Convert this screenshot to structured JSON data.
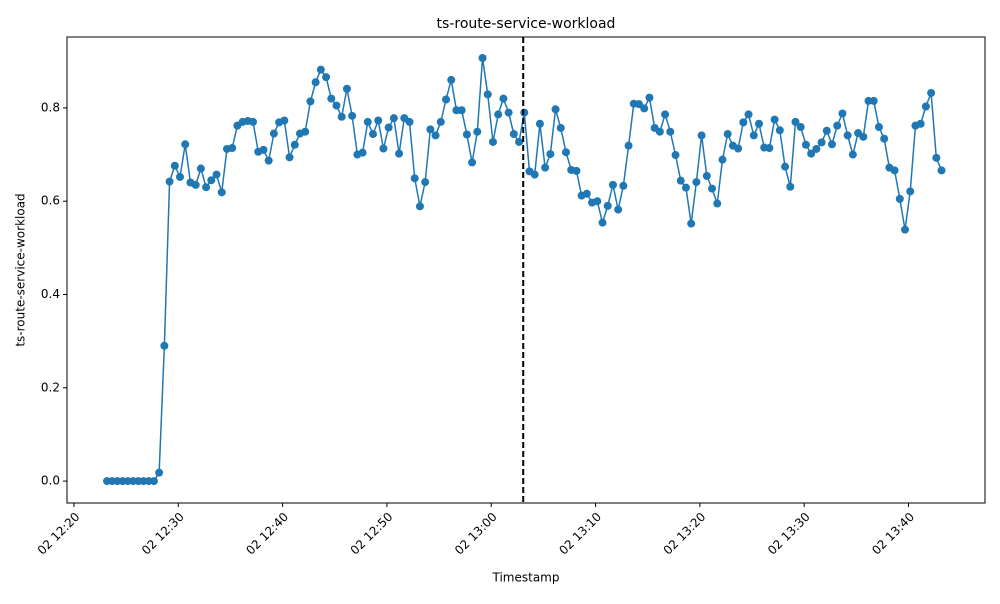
{
  "chart_data": {
    "type": "line",
    "title": "ts-route-service-workload",
    "x_label": "Timestamp",
    "y_label": "ts-route-service-workload",
    "color": "#1f77b4",
    "vline": "13:03:04",
    "vline_color": "#000000",
    "x": [
      "12:23:10",
      "12:23:40",
      "12:24:10",
      "12:24:40",
      "12:25:10",
      "12:25:40",
      "12:26:10",
      "12:26:40",
      "12:27:10",
      "12:27:40",
      "12:28:10",
      "12:28:40",
      "12:29:10",
      "12:29:40",
      "12:30:10",
      "12:30:40",
      "12:31:10",
      "12:31:40",
      "12:32:10",
      "12:32:40",
      "12:33:10",
      "12:33:40",
      "12:34:10",
      "12:34:40",
      "12:35:10",
      "12:35:40",
      "12:36:10",
      "12:36:40",
      "12:37:10",
      "12:37:40",
      "12:38:10",
      "12:38:40",
      "12:39:10",
      "12:39:40",
      "12:40:10",
      "12:40:40",
      "12:41:10",
      "12:41:40",
      "12:42:10",
      "12:42:40",
      "12:43:10",
      "12:43:40",
      "12:44:10",
      "12:44:40",
      "12:45:10",
      "12:45:40",
      "12:46:10",
      "12:46:40",
      "12:47:10",
      "12:47:40",
      "12:48:10",
      "12:48:40",
      "12:49:10",
      "12:49:40",
      "12:50:10",
      "12:50:40",
      "12:51:10",
      "12:51:40",
      "12:52:10",
      "12:52:40",
      "12:53:10",
      "12:53:40",
      "12:54:10",
      "12:54:40",
      "12:55:10",
      "12:55:40",
      "12:56:10",
      "12:56:40",
      "12:57:10",
      "12:57:40",
      "12:58:10",
      "12:58:40",
      "12:59:10",
      "12:59:40",
      "13:00:10",
      "13:00:40",
      "13:01:10",
      "13:01:40",
      "13:02:10",
      "13:02:40",
      "13:03:10",
      "13:03:40",
      "13:04:10",
      "13:04:40",
      "13:05:10",
      "13:05:40",
      "13:06:10",
      "13:06:40",
      "13:07:10",
      "13:07:40",
      "13:08:10",
      "13:08:40",
      "13:09:10",
      "13:09:40",
      "13:10:10",
      "13:10:40",
      "13:11:10",
      "13:11:40",
      "13:12:10",
      "13:12:40",
      "13:13:10",
      "13:13:40",
      "13:14:10",
      "13:14:40",
      "13:15:10",
      "13:15:40",
      "13:16:10",
      "13:16:40",
      "13:17:10",
      "13:17:40",
      "13:18:10",
      "13:18:40",
      "13:19:10",
      "13:19:40",
      "13:20:10",
      "13:20:40",
      "13:21:10",
      "13:21:40",
      "13:22:10",
      "13:22:40",
      "13:23:10",
      "13:23:40",
      "13:24:10",
      "13:24:40",
      "13:25:10",
      "13:25:40",
      "13:26:10",
      "13:26:40",
      "13:27:10",
      "13:27:40",
      "13:28:10",
      "13:28:40",
      "13:29:10",
      "13:29:40",
      "13:30:10",
      "13:30:40",
      "13:31:10",
      "13:31:40",
      "13:32:10",
      "13:32:40",
      "13:33:10",
      "13:33:40",
      "13:34:10",
      "13:34:40",
      "13:35:10",
      "13:35:40",
      "13:36:10",
      "13:36:40",
      "13:37:10",
      "13:37:40",
      "13:38:10",
      "13:38:40",
      "13:39:10",
      "13:39:40",
      "13:40:10",
      "13:40:40",
      "13:41:10",
      "13:41:40",
      "13:42:10",
      "13:42:40",
      "13:43:10"
    ],
    "values": [
      0,
      0,
      0,
      0,
      0,
      0,
      0,
      0,
      0,
      0,
      0.018,
      0.29,
      0.642,
      0.676,
      0.652,
      0.722,
      0.64,
      0.635,
      0.67,
      0.63,
      0.645,
      0.657,
      0.619,
      0.712,
      0.714,
      0.762,
      0.77,
      0.772,
      0.77,
      0.706,
      0.71,
      0.687,
      0.745,
      0.769,
      0.773,
      0.694,
      0.721,
      0.745,
      0.749,
      0.814,
      0.855,
      0.882,
      0.866,
      0.82,
      0.805,
      0.781,
      0.841,
      0.783,
      0.7,
      0.704,
      0.77,
      0.744,
      0.773,
      0.713,
      0.758,
      0.778,
      0.702,
      0.778,
      0.77,
      0.649,
      0.589,
      0.641,
      0.754,
      0.741,
      0.77,
      0.818,
      0.86,
      0.795,
      0.795,
      0.743,
      0.683,
      0.749,
      0.907,
      0.829,
      0.727,
      0.786,
      0.82,
      0.79,
      0.744,
      0.727,
      0.79,
      0.664,
      0.657,
      0.766,
      0.672,
      0.701,
      0.797,
      0.757,
      0.705,
      0.667,
      0.665,
      0.612,
      0.616,
      0.597,
      0.6,
      0.554,
      0.59,
      0.635,
      0.582,
      0.633,
      0.719,
      0.809,
      0.808,
      0.799,
      0.822,
      0.757,
      0.749,
      0.786,
      0.749,
      0.699,
      0.644,
      0.629,
      0.552,
      0.641,
      0.741,
      0.654,
      0.627,
      0.595,
      0.689,
      0.744,
      0.719,
      0.713,
      0.769,
      0.786,
      0.741,
      0.766,
      0.715,
      0.714,
      0.775,
      0.752,
      0.674,
      0.631,
      0.77,
      0.759,
      0.721,
      0.702,
      0.712,
      0.726,
      0.751,
      0.722,
      0.762,
      0.788,
      0.741,
      0.7,
      0.746,
      0.738,
      0.815,
      0.815,
      0.759,
      0.734,
      0.672,
      0.666,
      0.605,
      0.539,
      0.621,
      0.762,
      0.766,
      0.803,
      0.832,
      0.693,
      0.666
    ],
    "xlim": [
      "12:19:20",
      "13:47:20"
    ],
    "xticks": [
      {
        "value": "12:20:00",
        "label": "02 12:20"
      },
      {
        "value": "12:30:00",
        "label": "02 12:30"
      },
      {
        "value": "12:40:00",
        "label": "02 12:40"
      },
      {
        "value": "12:50:00",
        "label": "02 12:50"
      },
      {
        "value": "13:00:00",
        "label": "02 13:00"
      },
      {
        "value": "13:10:00",
        "label": "02 13:10"
      },
      {
        "value": "13:20:00",
        "label": "02 13:20"
      },
      {
        "value": "13:30:00",
        "label": "02 13:30"
      },
      {
        "value": "13:40:00",
        "label": "02 13:40"
      }
    ],
    "ylim": [
      -0.047,
      0.952
    ],
    "yticks": [
      {
        "value": 0,
        "label": "0.0"
      },
      {
        "value": 0.2,
        "label": "0.2"
      },
      {
        "value": 0.4,
        "label": "0.4"
      },
      {
        "value": 0.6,
        "label": "0.6"
      },
      {
        "value": 0.8,
        "label": "0.8"
      }
    ]
  }
}
